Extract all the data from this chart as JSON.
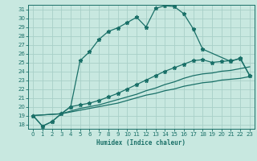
{
  "bg_color": "#c8e8e0",
  "line_color": "#1a7068",
  "grid_color": "#a8cfc8",
  "xlabel": "Humidex (Indice chaleur)",
  "xlim": [
    -0.5,
    23.5
  ],
  "ylim": [
    17.5,
    31.5
  ],
  "xticks": [
    0,
    1,
    2,
    3,
    4,
    5,
    6,
    7,
    8,
    9,
    10,
    11,
    12,
    13,
    14,
    15,
    16,
    17,
    18,
    19,
    20,
    21,
    22,
    23
  ],
  "yticks": [
    18,
    19,
    20,
    21,
    22,
    23,
    24,
    25,
    26,
    27,
    28,
    29,
    30,
    31
  ],
  "curve_main_x": [
    0,
    1,
    2,
    3,
    4,
    5,
    6,
    7,
    8,
    9,
    10,
    11,
    12,
    13,
    14,
    15,
    16,
    17,
    18,
    21,
    22,
    23
  ],
  "curve_main_y": [
    19.0,
    17.8,
    18.3,
    19.2,
    20.0,
    25.2,
    26.2,
    27.6,
    28.5,
    28.9,
    29.5,
    30.1,
    29.0,
    31.1,
    31.4,
    31.3,
    30.5,
    28.8,
    26.5,
    25.1,
    25.5,
    23.5
  ],
  "curve2_x": [
    0,
    1,
    2,
    3,
    4,
    5,
    6,
    7,
    8,
    9,
    10,
    11,
    12,
    13,
    14,
    15,
    16,
    17,
    18,
    19,
    20,
    21,
    22,
    23
  ],
  "curve2_y": [
    19.0,
    17.8,
    18.3,
    19.2,
    20.0,
    20.2,
    20.4,
    20.7,
    21.1,
    21.5,
    22.0,
    22.5,
    23.0,
    23.5,
    24.0,
    24.4,
    24.8,
    25.2,
    25.3,
    25.0,
    25.1,
    25.2,
    25.4,
    23.5
  ],
  "curve3_x": [
    0,
    3,
    4,
    5,
    6,
    7,
    8,
    9,
    10,
    11,
    12,
    13,
    14,
    15,
    16,
    17,
    18,
    19,
    20,
    21,
    22,
    23
  ],
  "curve3_y": [
    19.0,
    19.2,
    19.5,
    19.8,
    20.0,
    20.2,
    20.5,
    20.8,
    21.1,
    21.4,
    21.8,
    22.1,
    22.5,
    22.8,
    23.2,
    23.5,
    23.7,
    23.8,
    24.0,
    24.1,
    24.3,
    24.5
  ],
  "curve4_x": [
    0,
    3,
    4,
    5,
    6,
    7,
    8,
    9,
    10,
    11,
    12,
    13,
    14,
    15,
    16,
    17,
    18,
    19,
    20,
    21,
    22,
    23
  ],
  "curve4_y": [
    19.0,
    19.2,
    19.4,
    19.6,
    19.8,
    20.0,
    20.2,
    20.4,
    20.7,
    21.0,
    21.3,
    21.5,
    21.8,
    22.0,
    22.3,
    22.5,
    22.7,
    22.8,
    23.0,
    23.1,
    23.2,
    23.4
  ]
}
